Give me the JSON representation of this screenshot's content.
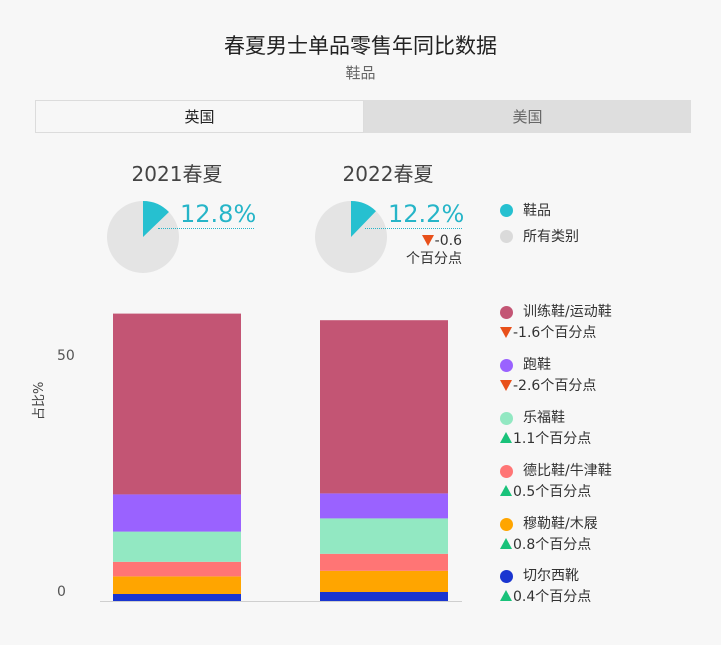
{
  "header": {
    "title": "春夏男士单品零售年同比数据",
    "subtitle": "鞋品"
  },
  "tabs": [
    {
      "label": "英国",
      "active": true
    },
    {
      "label": "美国",
      "active": false
    }
  ],
  "periods": [
    {
      "label": "2021春夏",
      "share_pct": 12.8,
      "share_text": "12.8%"
    },
    {
      "label": "2022春夏",
      "share_pct": 12.2,
      "share_text": "12.2%",
      "delta_text": "-0.6",
      "delta_unit": "个百分点"
    }
  ],
  "top_legend": [
    {
      "label": "鞋品",
      "color": "#26c0d0"
    },
    {
      "label": "所有类别",
      "color": "#dadada"
    }
  ],
  "chart_data": {
    "type": "bar",
    "stacked": true,
    "categories": [
      "2021春夏",
      "2022春夏"
    ],
    "ylabel": "占比%",
    "yticks": [
      0,
      50
    ],
    "ylim": [
      0,
      62
    ],
    "series": [
      {
        "name": "切尔西靴",
        "color": "#1a35d0",
        "values": [
          1.5,
          1.9
        ],
        "change_text": "0.4个百分点",
        "direction": "up"
      },
      {
        "name": "穆勒鞋/木屐",
        "color": "#ffa500",
        "values": [
          3.7,
          4.5
        ],
        "change_text": "0.8个百分点",
        "direction": "up"
      },
      {
        "name": "德比鞋/牛津鞋",
        "color": "#ff7575",
        "values": [
          3.1,
          3.6
        ],
        "change_text": "0.5个百分点",
        "direction": "up"
      },
      {
        "name": "乐福鞋",
        "color": "#92e8c2",
        "values": [
          6.4,
          7.5
        ],
        "change_text": "1.1个百分点",
        "direction": "up"
      },
      {
        "name": "跑鞋",
        "color": "#9a62ff",
        "values": [
          7.9,
          5.3
        ],
        "change_text": "-2.6个百分点",
        "direction": "down"
      },
      {
        "name": "训练鞋/运动鞋",
        "color": "#c35574",
        "values": [
          38.3,
          36.7
        ],
        "change_text": "-1.6个百分点",
        "direction": "down"
      }
    ]
  }
}
